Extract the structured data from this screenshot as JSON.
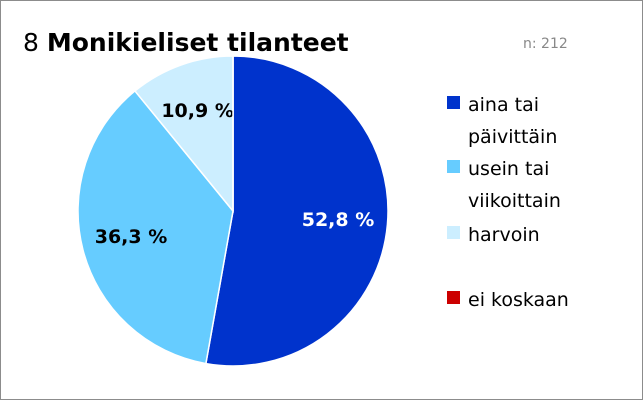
{
  "chart_data": {
    "type": "pie",
    "title_number": "8",
    "title": "Monikieliset tilanteet",
    "annotation": "n: 212",
    "categories": [
      "aina tai päivittäin",
      "usein tai viikoittain",
      "harvoin",
      "ei koskaan"
    ],
    "values": [
      52.8,
      36.3,
      10.9,
      0
    ],
    "value_labels": [
      "52,8 %",
      "36,3 %",
      "10,9 %",
      null
    ],
    "colors": [
      "#0033cc",
      "#66ccff",
      "#cceeff",
      "#cc0000"
    ],
    "label_colors": [
      "#ffffff",
      "#000000",
      "#000000",
      "#000000"
    ]
  }
}
